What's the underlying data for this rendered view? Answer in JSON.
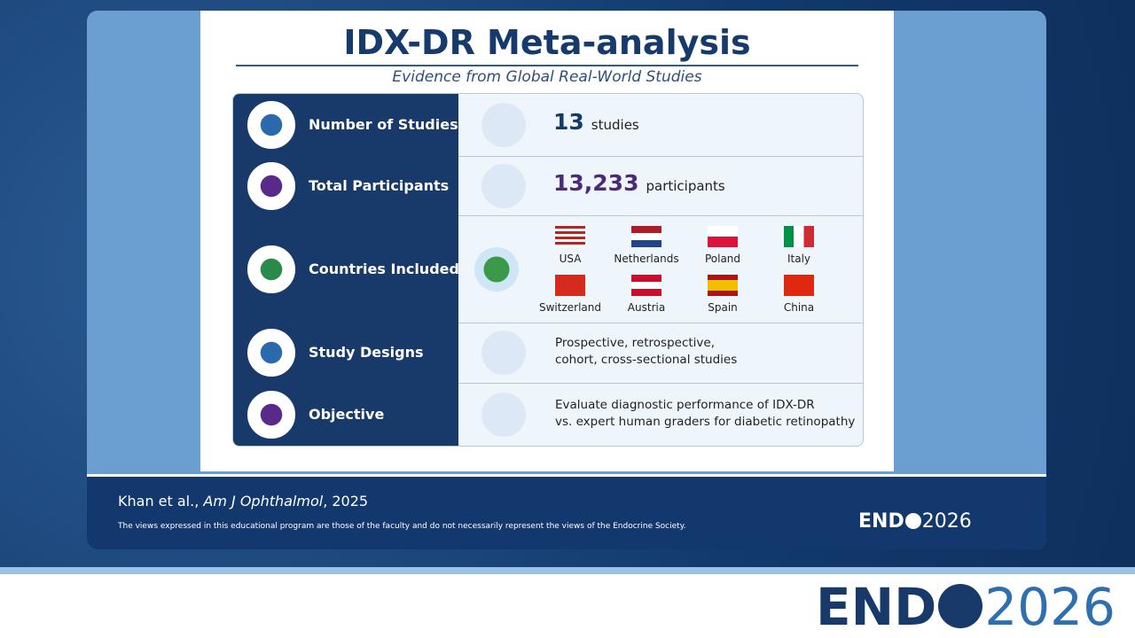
{
  "title": "IDX-DR Meta-analysis",
  "subtitle": "Evidence from Global Real-World Studies",
  "rows": [
    {
      "label": "Number of Studies",
      "value": "13",
      "unit": "studies"
    },
    {
      "label": "Total Participants",
      "value": "13,233",
      "unit": "participants"
    },
    {
      "label": "Countries Included",
      "countries": [
        "USA",
        "Netherlands",
        "Poland",
        "Italy",
        "Switzerland",
        "Austria",
        "Spain",
        "China"
      ]
    },
    {
      "label": "Study Designs",
      "lines": [
        "Prospective, retrospective,",
        "cohort, cross-sectional studies"
      ]
    },
    {
      "label": "Objective",
      "lines": [
        "Evaluate diagnostic performance of IDX-DR",
        "vs. expert human graders for diabetic retinopathy"
      ]
    }
  ],
  "footer": {
    "authors": "Khan et al.,",
    "journal": "Am J Ophthalmol",
    "year": ", 2025",
    "disclaimer": "The views expressed in this educational program are those of the faculty and do not necessarily represent the views of the Endocrine Society.",
    "logo": {
      "name": "END",
      "year": "2026"
    }
  },
  "banner": {
    "name": "END",
    "year": "2026"
  }
}
